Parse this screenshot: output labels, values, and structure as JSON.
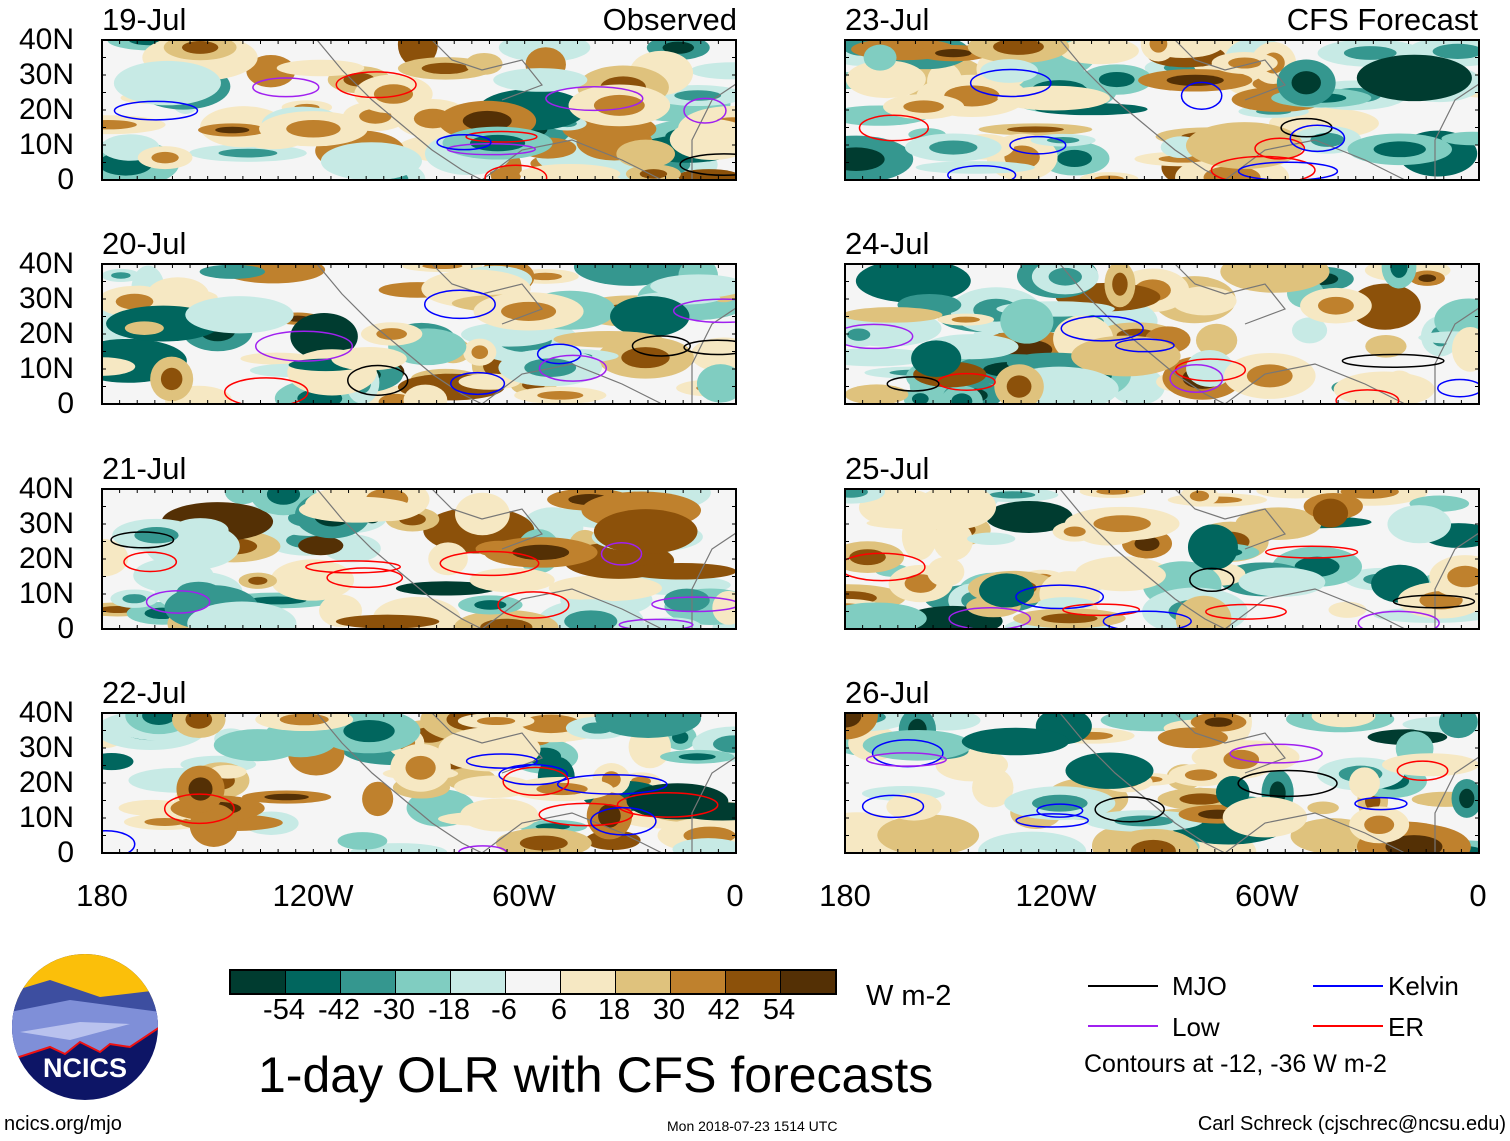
{
  "header": {
    "left_title": "Observed",
    "right_title": "CFS Forecast"
  },
  "panels_left": [
    "19-Jul",
    "20-Jul",
    "21-Jul",
    "22-Jul"
  ],
  "panels_right": [
    "23-Jul",
    "24-Jul",
    "25-Jul",
    "26-Jul"
  ],
  "lat_labels": [
    "40N",
    "30N",
    "20N",
    "10N",
    "0"
  ],
  "lon_labels": [
    "180",
    "120W",
    "60W",
    "0"
  ],
  "colorbar": {
    "labels": [
      "-54",
      "-42",
      "-30",
      "-18",
      "-6",
      "6",
      "18",
      "30",
      "42",
      "54"
    ],
    "colors": [
      "#003c30",
      "#01665e",
      "#35978f",
      "#80cdc1",
      "#c7eae5",
      "#f5f5f5",
      "#f6e8c3",
      "#dfc27d",
      "#bf812d",
      "#8c510a",
      "#543005"
    ],
    "units": "W m-2"
  },
  "title": "1-day OLR with CFS forecasts",
  "timestamp": "Mon 2018-07-23 1514 UTC",
  "legend": {
    "items": [
      {
        "label": "MJO",
        "color": "#000000"
      },
      {
        "label": "Kelvin",
        "color": "#0000ff"
      },
      {
        "label": "Low",
        "color": "#a020f0"
      },
      {
        "label": "ER",
        "color": "#ff0000"
      }
    ],
    "note": "Contours at -12, -36 W m-2"
  },
  "logo": {
    "text": "NCICS"
  },
  "footer": {
    "url": "ncics.org/mjo",
    "credit": "Carl Schreck (cjschrec@ncsu.edu)"
  }
}
